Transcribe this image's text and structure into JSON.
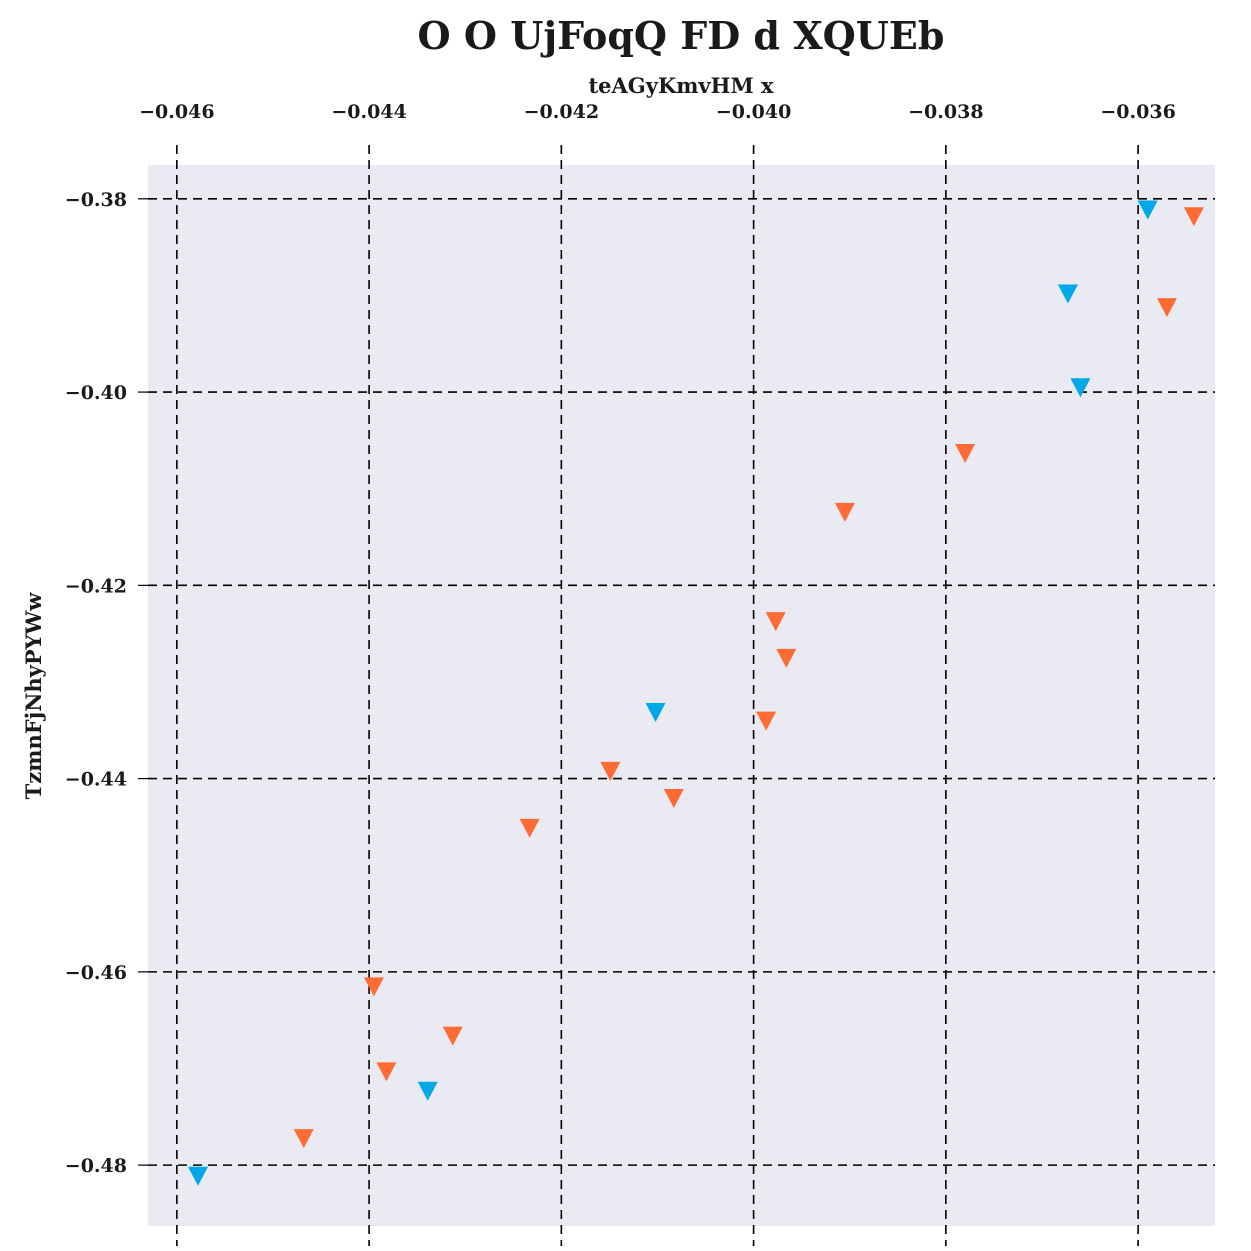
{
  "chart_data": {
    "type": "scatter",
    "title": "O O   UjFoqQ FD d XQUEb",
    "xlabel": "teAGyKmvHM x",
    "ylabel": "TzmnFjNhyPYWw",
    "x_axis_position": "top",
    "xlim": [
      -0.0463,
      -0.0352
    ],
    "ylim": [
      -0.4863,
      -0.3765
    ],
    "x_ticks": [
      -0.046,
      -0.044,
      -0.042,
      -0.04,
      -0.038,
      -0.036
    ],
    "x_tick_labels": [
      "−0.046",
      "−0.044",
      "−0.042",
      "−0.040",
      "−0.038",
      "−0.036"
    ],
    "y_ticks": [
      -0.38,
      -0.4,
      -0.42,
      -0.44,
      -0.46,
      -0.48
    ],
    "y_tick_labels": [
      "−0.38",
      "−0.40",
      "−0.42",
      "−0.44",
      "−0.46",
      "−0.48"
    ],
    "grid": true,
    "marker": "triangle-down",
    "background_color": "#eaeaf2",
    "series": [
      {
        "color": "#00a8e8",
        "points": [
          {
            "x": -0.0359,
            "y": -0.381
          },
          {
            "x": -0.03673,
            "y": -0.3897
          },
          {
            "x": -0.0366,
            "y": -0.3994
          },
          {
            "x": -0.04102,
            "y": -0.433
          },
          {
            "x": -0.04339,
            "y": -0.4722
          },
          {
            "x": -0.04578,
            "y": -0.481
          }
        ]
      },
      {
        "color": "#ff6b35",
        "points": [
          {
            "x": -0.03542,
            "y": -0.3817
          },
          {
            "x": -0.0357,
            "y": -0.3911
          },
          {
            "x": -0.0378,
            "y": -0.4062
          },
          {
            "x": -0.03905,
            "y": -0.4123
          },
          {
            "x": -0.03977,
            "y": -0.4236
          },
          {
            "x": -0.03966,
            "y": -0.4274
          },
          {
            "x": -0.03987,
            "y": -0.4339
          },
          {
            "x": -0.04149,
            "y": -0.4391
          },
          {
            "x": -0.04083,
            "y": -0.4419
          },
          {
            "x": -0.04233,
            "y": -0.445
          },
          {
            "x": -0.04395,
            "y": -0.4614
          },
          {
            "x": -0.04313,
            "y": -0.4665
          },
          {
            "x": -0.04382,
            "y": -0.4702
          },
          {
            "x": -0.04468,
            "y": -0.4771
          }
        ]
      }
    ]
  }
}
